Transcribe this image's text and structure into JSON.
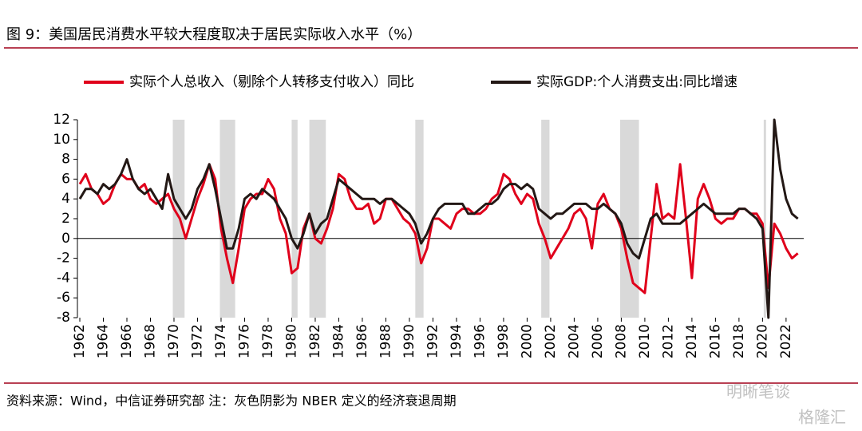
{
  "chart_data": {
    "type": "line",
    "title": "图 9：美国居民消费水平较大程度取决于居民实际收入水平（%）",
    "source": "资料来源：Wind，中信证券研究部  注：灰色阴影为 NBER 定义的经济衰退周期",
    "watermarks": [
      "明晰笔谈",
      "格隆汇"
    ],
    "x": [
      1962,
      1962.5,
      1963,
      1963.5,
      1964,
      1964.5,
      1965,
      1965.5,
      1966,
      1966.5,
      1967,
      1967.5,
      1968,
      1968.5,
      1969,
      1969.5,
      1970,
      1970.5,
      1971,
      1971.5,
      1972,
      1972.5,
      1973,
      1973.5,
      1974,
      1974.5,
      1975,
      1975.5,
      1976,
      1976.5,
      1977,
      1977.5,
      1978,
      1978.5,
      1979,
      1979.5,
      1980,
      1980.5,
      1981,
      1981.5,
      1982,
      1982.5,
      1983,
      1983.5,
      1984,
      1984.5,
      1985,
      1985.5,
      1986,
      1986.5,
      1987,
      1987.5,
      1988,
      1988.5,
      1989,
      1989.5,
      1990,
      1990.5,
      1991,
      1991.5,
      1992,
      1992.5,
      1993,
      1993.5,
      1994,
      1994.5,
      1995,
      1995.5,
      1996,
      1996.5,
      1997,
      1997.5,
      1998,
      1998.5,
      1999,
      1999.5,
      2000,
      2000.5,
      2001,
      2001.5,
      2002,
      2002.5,
      2003,
      2003.5,
      2004,
      2004.5,
      2005,
      2005.5,
      2006,
      2006.5,
      2007,
      2007.5,
      2008,
      2008.5,
      2009,
      2009.5,
      2010,
      2010.5,
      2011,
      2011.5,
      2012,
      2012.5,
      2013,
      2013.5,
      2014,
      2014.5,
      2015,
      2015.5,
      2016,
      2016.5,
      2017,
      2017.5,
      2018,
      2018.5,
      2019,
      2019.5,
      2020,
      2020.5,
      2021,
      2021.5,
      2022,
      2022.5,
      2023
    ],
    "series": [
      {
        "name": "实际个人总收入（剔除个人转移支付收入）同比",
        "color": "#e0001b",
        "values": [
          5.5,
          6.5,
          5,
          4.5,
          3.5,
          4,
          5.5,
          6.5,
          6,
          6,
          5,
          5.5,
          4,
          3.5,
          4,
          4.5,
          3,
          2,
          0,
          2,
          4,
          5.5,
          7.5,
          6,
          1,
          -2,
          -4.5,
          -1,
          3,
          4,
          4.5,
          4.5,
          6,
          5,
          2,
          0.5,
          -3.5,
          -3,
          1,
          2.5,
          0,
          -0.5,
          1,
          3,
          6.5,
          6,
          4,
          3,
          3,
          3.5,
          1.5,
          2,
          4,
          4,
          3,
          2,
          1.5,
          0.5,
          -2.5,
          -1,
          2,
          2,
          1.5,
          1,
          2.5,
          3,
          3,
          2.5,
          2.5,
          3,
          4,
          4.5,
          6.5,
          6,
          4.5,
          3.5,
          4.5,
          4,
          1.5,
          0,
          -2,
          -1,
          0,
          1,
          2.5,
          3,
          2,
          -1,
          3.5,
          4.5,
          3,
          2.5,
          1,
          -2,
          -4.5,
          -5,
          -5.5,
          0,
          5.5,
          2,
          2.5,
          2,
          7.5,
          2,
          -4,
          4,
          5.5,
          4,
          2,
          1.5,
          2,
          2,
          3,
          3,
          2.5,
          2.5,
          1.5,
          -5,
          1.5,
          0.5,
          -1,
          -2,
          -1.5
        ]
      },
      {
        "name": "实际GDP:个人消费支出:同比增速",
        "color": "#231815",
        "values": [
          4,
          5,
          5,
          4.5,
          5.5,
          5,
          5.5,
          6.5,
          8,
          6,
          5,
          4.5,
          5,
          4,
          3,
          6.5,
          4,
          3,
          2,
          3,
          5,
          6,
          7.5,
          5,
          2,
          -1,
          -1,
          1,
          4,
          4.5,
          4,
          5,
          4.5,
          4,
          3,
          2,
          0,
          -1,
          0.5,
          2.5,
          0.5,
          1.5,
          2,
          4,
          6,
          5.5,
          5,
          4.5,
          4,
          4,
          4,
          3.5,
          4,
          4,
          3.5,
          3,
          2.5,
          1.5,
          -0.5,
          0.5,
          2,
          3,
          3.5,
          3.5,
          3.5,
          3.5,
          2.5,
          2.5,
          3,
          3.5,
          3.5,
          4,
          5,
          5.5,
          5.5,
          5,
          5.5,
          5,
          3,
          2.5,
          2,
          2.5,
          2.5,
          3,
          3.5,
          3.5,
          3.5,
          3,
          3,
          3.5,
          3,
          2.5,
          1.5,
          -0.5,
          -1.5,
          -2,
          0,
          2,
          2.5,
          1.5,
          1.5,
          1.5,
          1.5,
          2,
          2.5,
          3,
          3.5,
          3,
          2.5,
          2.5,
          2.5,
          2.5,
          3,
          3,
          2.5,
          2,
          1,
          -8,
          12,
          7,
          4,
          2.5,
          2
        ]
      }
    ],
    "recessions": [
      [
        1969.9,
        1970.9
      ],
      [
        1973.9,
        1975.2
      ],
      [
        1980,
        1980.5
      ],
      [
        1981.5,
        1982.9
      ],
      [
        1990.5,
        1991.2
      ],
      [
        2001.2,
        2001.9
      ],
      [
        2007.9,
        2009.5
      ],
      [
        2020.1,
        2020.3
      ]
    ],
    "xlim": [
      1962,
      2023.5
    ],
    "xticks": [
      1962,
      1964,
      1966,
      1968,
      1970,
      1972,
      1974,
      1976,
      1978,
      1980,
      1982,
      1984,
      1986,
      1988,
      1990,
      1992,
      1994,
      1996,
      1998,
      2000,
      2002,
      2004,
      2006,
      2008,
      2010,
      2012,
      2014,
      2016,
      2018,
      2020,
      2022
    ],
    "ylim": [
      -8,
      12
    ],
    "yticks": [
      -8,
      -6,
      -4,
      -2,
      0,
      2,
      4,
      6,
      8,
      10,
      12
    ]
  }
}
